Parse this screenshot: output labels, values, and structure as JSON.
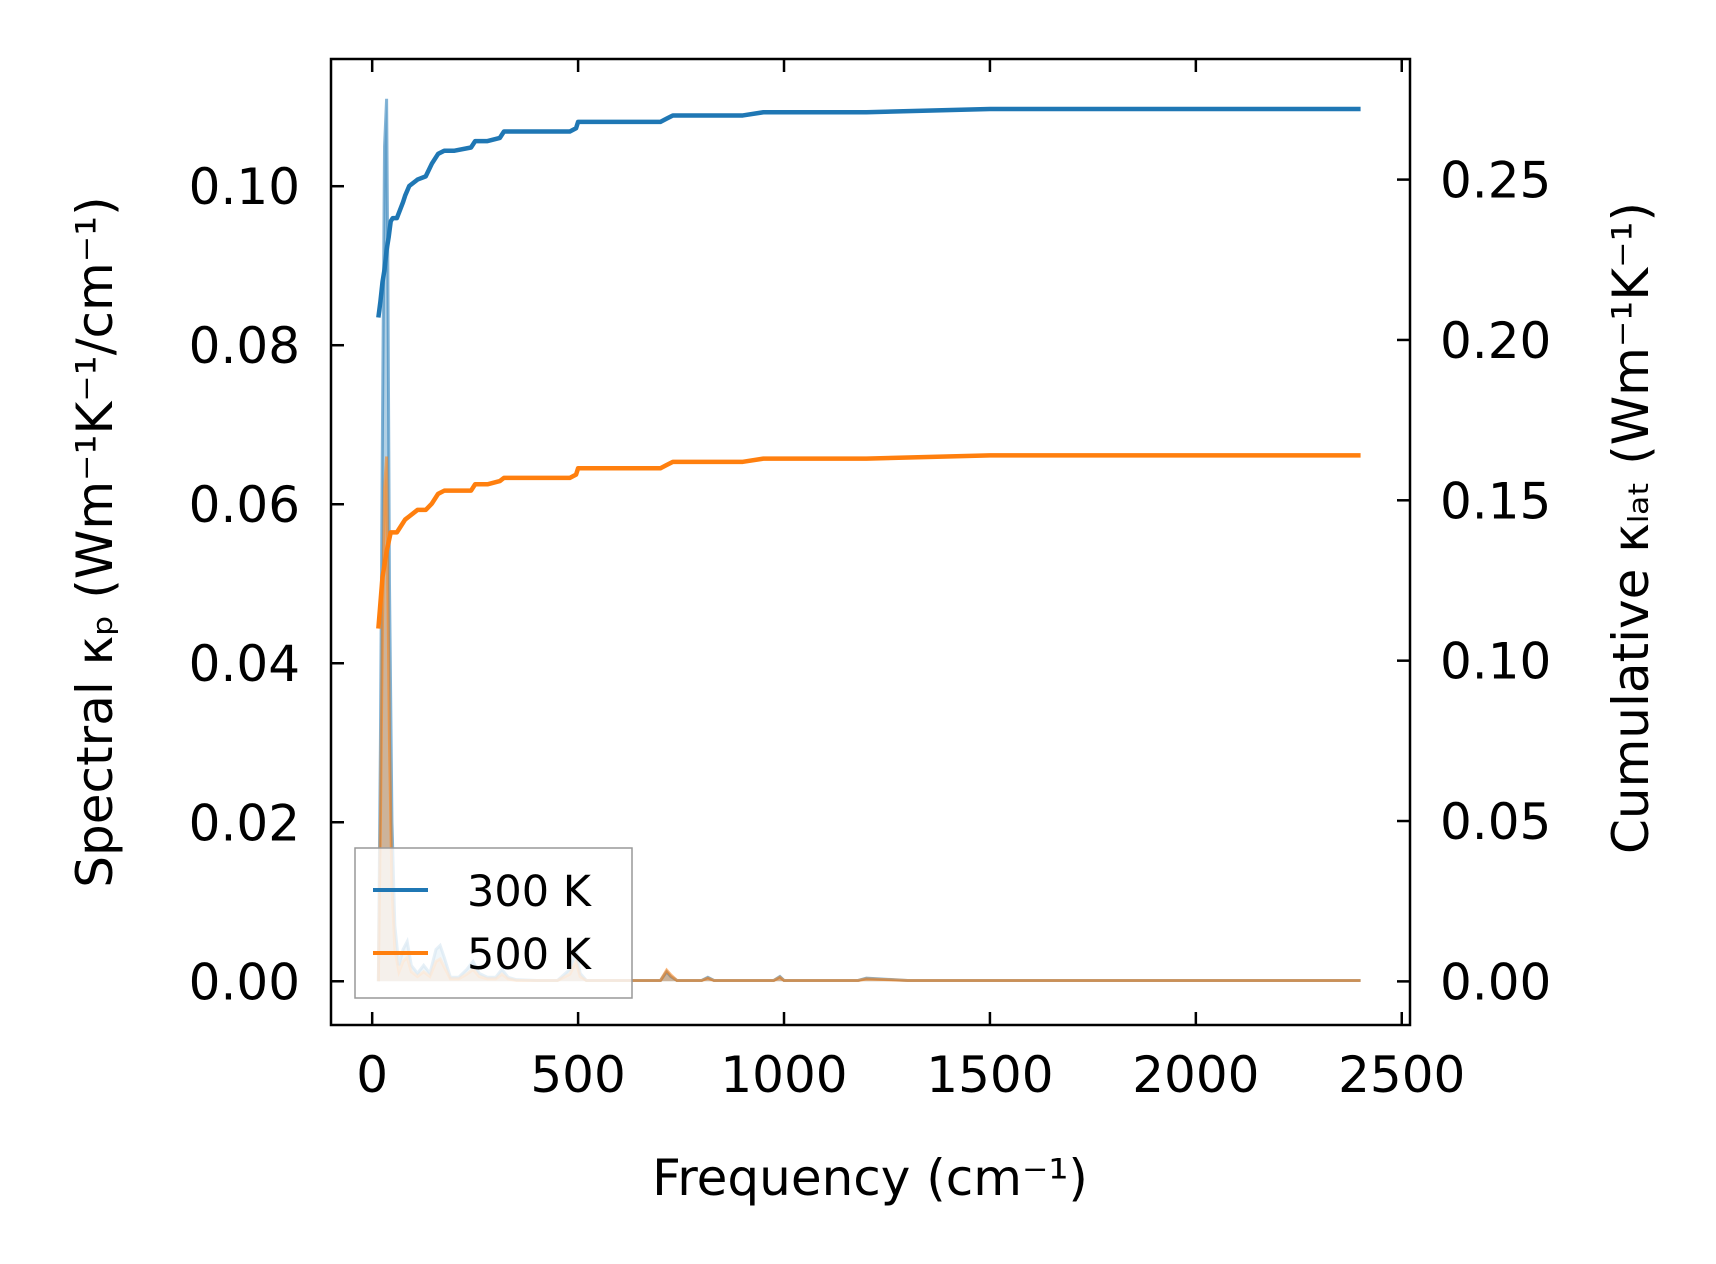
{
  "chart_data": {
    "type": "line",
    "xlabel": "Frequency (cm⁻¹)",
    "ylabel_left": "Spectral κₚ (Wm⁻¹K⁻¹/cm⁻¹)",
    "ylabel_right": "Cumulative κₗₐₜ (Wm⁻¹K⁻¹)",
    "xlim": [
      -100,
      2520
    ],
    "ylim_left": [
      -0.0055,
      0.116
    ],
    "ylim_right": [
      -0.0136,
      0.2876
    ],
    "x_ticks": [
      0,
      500,
      1000,
      1500,
      2000,
      2500
    ],
    "x_tick_labels": [
      "0",
      "500",
      "1000",
      "1500",
      "2000",
      "2500"
    ],
    "y_left_ticks": [
      0.0,
      0.02,
      0.04,
      0.06,
      0.08,
      0.1
    ],
    "y_left_tick_labels": [
      "0.00",
      "0.02",
      "0.04",
      "0.06",
      "0.08",
      "0.10"
    ],
    "y_right_ticks": [
      0.0,
      0.05,
      0.1,
      0.15,
      0.2,
      0.25
    ],
    "y_right_tick_labels": [
      "0.00",
      "0.05",
      "0.10",
      "0.15",
      "0.20",
      "0.25"
    ],
    "legend": {
      "position": "lower-left",
      "entries": [
        "300 K",
        "500 K"
      ]
    },
    "colors": {
      "300 K": "#1f77b4",
      "500 K": "#ff7f0e"
    },
    "cumulative_series": [
      {
        "name": "300 K",
        "axis": "right",
        "x": [
          15,
          20,
          25,
          30,
          35,
          40,
          45,
          50,
          60,
          75,
          80,
          90,
          110,
          130,
          145,
          160,
          175,
          200,
          240,
          250,
          280,
          310,
          320,
          350,
          400,
          450,
          480,
          495,
          500,
          520,
          600,
          700,
          715,
          730,
          800,
          900,
          950,
          1000,
          1200,
          1500,
          2000,
          2400
        ],
        "values": [
          0.207,
          0.212,
          0.218,
          0.222,
          0.228,
          0.232,
          0.237,
          0.238,
          0.238,
          0.243,
          0.245,
          0.248,
          0.25,
          0.251,
          0.255,
          0.258,
          0.259,
          0.259,
          0.26,
          0.262,
          0.262,
          0.263,
          0.265,
          0.265,
          0.265,
          0.265,
          0.265,
          0.266,
          0.268,
          0.268,
          0.268,
          0.268,
          0.269,
          0.27,
          0.27,
          0.27,
          0.271,
          0.271,
          0.271,
          0.272,
          0.272,
          0.272
        ]
      },
      {
        "name": "500 K",
        "axis": "right",
        "x": [
          15,
          20,
          25,
          30,
          35,
          40,
          45,
          50,
          60,
          75,
          80,
          90,
          110,
          130,
          145,
          160,
          175,
          200,
          240,
          250,
          280,
          310,
          320,
          350,
          400,
          450,
          480,
          495,
          500,
          520,
          600,
          700,
          715,
          730,
          800,
          900,
          950,
          1000,
          1200,
          1500,
          2000,
          2400
        ],
        "values": [
          0.11,
          0.118,
          0.126,
          0.13,
          0.134,
          0.137,
          0.14,
          0.14,
          0.14,
          0.143,
          0.144,
          0.145,
          0.147,
          0.147,
          0.149,
          0.152,
          0.153,
          0.153,
          0.153,
          0.155,
          0.155,
          0.156,
          0.157,
          0.157,
          0.157,
          0.157,
          0.157,
          0.158,
          0.16,
          0.16,
          0.16,
          0.16,
          0.161,
          0.162,
          0.162,
          0.162,
          0.163,
          0.163,
          0.163,
          0.164,
          0.164,
          0.164
        ]
      }
    ],
    "spectral_series": [
      {
        "name": "300 K",
        "axis": "left",
        "x": [
          15,
          20,
          25,
          30,
          35,
          38,
          42,
          48,
          55,
          65,
          75,
          85,
          95,
          110,
          125,
          140,
          155,
          165,
          175,
          190,
          210,
          230,
          245,
          260,
          280,
          300,
          315,
          330,
          350,
          400,
          450,
          480,
          495,
          505,
          520,
          600,
          700,
          715,
          725,
          740,
          800,
          815,
          830,
          900,
          975,
          990,
          1000,
          1100,
          1180,
          1200,
          1300,
          1500,
          2000,
          2400
        ],
        "values": [
          0.0,
          0.03,
          0.07,
          0.105,
          0.111,
          0.09,
          0.05,
          0.02,
          0.007,
          0.002,
          0.004,
          0.005,
          0.002,
          0.001,
          0.002,
          0.001,
          0.004,
          0.0045,
          0.003,
          0.0005,
          0.0005,
          0.0015,
          0.0025,
          0.001,
          0.0005,
          0.0005,
          0.0015,
          0.0005,
          0.0002,
          0.0001,
          0.0001,
          0.0015,
          0.004,
          0.001,
          0.0001,
          0.0001,
          0.0001,
          0.0012,
          0.0006,
          0.0001,
          0.0001,
          0.0005,
          0.0001,
          0.0001,
          0.0001,
          0.0006,
          0.0001,
          0.0001,
          0.0001,
          0.0004,
          0.0001,
          0.0001,
          0.0001,
          0.0001
        ]
      },
      {
        "name": "500 K",
        "axis": "left",
        "x": [
          15,
          20,
          25,
          30,
          35,
          38,
          42,
          48,
          55,
          65,
          75,
          85,
          95,
          110,
          125,
          140,
          155,
          165,
          175,
          190,
          210,
          230,
          245,
          260,
          280,
          300,
          315,
          330,
          350,
          400,
          450,
          480,
          495,
          505,
          520,
          600,
          700,
          715,
          725,
          740,
          800,
          815,
          830,
          900,
          975,
          990,
          1000,
          1100,
          1180,
          1200,
          1300,
          1500,
          2000,
          2400
        ],
        "values": [
          0.0,
          0.02,
          0.045,
          0.062,
          0.066,
          0.05,
          0.03,
          0.012,
          0.004,
          0.0012,
          0.0025,
          0.003,
          0.0012,
          0.0006,
          0.0012,
          0.0006,
          0.0025,
          0.0028,
          0.0018,
          0.0003,
          0.0003,
          0.0009,
          0.0015,
          0.0006,
          0.0003,
          0.0003,
          0.0009,
          0.0003,
          0.0001,
          0.0001,
          0.0001,
          0.0009,
          0.0025,
          0.0006,
          0.0001,
          0.0001,
          0.0001,
          0.0014,
          0.0008,
          0.0001,
          0.0001,
          0.0004,
          0.0001,
          0.0001,
          0.0001,
          0.0005,
          0.0001,
          0.0001,
          0.0001,
          0.0003,
          0.0001,
          0.0001,
          0.0001,
          0.0001
        ]
      }
    ]
  }
}
